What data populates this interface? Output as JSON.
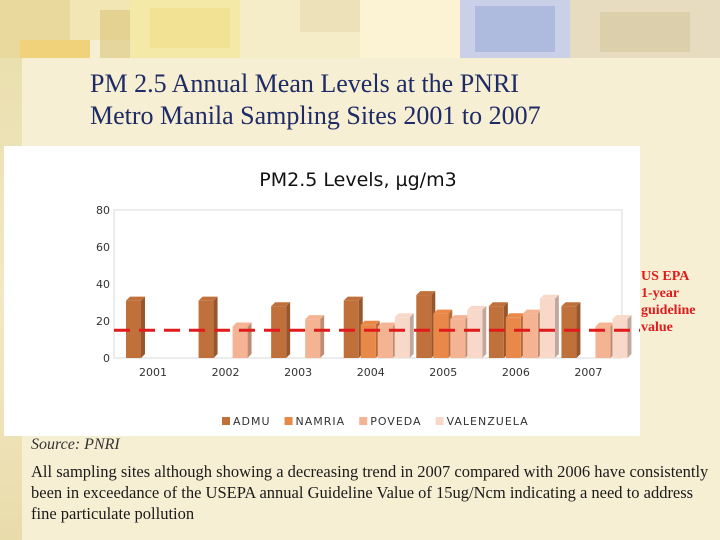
{
  "slide": {
    "title_line1": "PM 2.5 Annual Mean Levels at the PNRI",
    "title_line2": "Metro Manila Sampling Sites 2001 to 2007",
    "source": "Source: PNRI",
    "note": "All sampling sites although showing a decreasing trend in 2007 compared with 2006 have consistently been in exceedance of the USEPA annual Guideline Value of 15ug/Ncm indicating a need to address fine particulate pollution"
  },
  "guideline_label": {
    "line1": "US EPA",
    "line2": "1-year",
    "line3": "guideline",
    "line4": "value"
  },
  "colors": {
    "background": "#f7efd3",
    "title": "#1f2b66",
    "guideline": "#e11b1b",
    "admu": "#c0703a",
    "namria": "#e8894a",
    "poveda": "#f4b494",
    "valenzuela": "#f8d8c8"
  },
  "chart_data": {
    "type": "bar",
    "title": "PM2.5 Levels, µg/m3",
    "categories": [
      "2001",
      "2002",
      "2003",
      "2004",
      "2005",
      "2006",
      "2007"
    ],
    "series": [
      {
        "name": "ADMU",
        "color": "#c0703a",
        "values": [
          31,
          31,
          28,
          31,
          34,
          28,
          28
        ]
      },
      {
        "name": "NAMRIA",
        "color": "#e8894a",
        "values": [
          null,
          null,
          null,
          18,
          24,
          22,
          null
        ]
      },
      {
        "name": "POVEDA",
        "color": "#f4b494",
        "values": [
          null,
          17,
          21,
          17,
          21,
          24,
          17
        ]
      },
      {
        "name": "VALENZUELA",
        "color": "#f8d8c8",
        "values": [
          null,
          null,
          null,
          22,
          26,
          32,
          21
        ]
      }
    ],
    "ylim": [
      0,
      80
    ],
    "yticks": [
      0,
      20,
      40,
      60,
      80
    ],
    "grid": false,
    "legend_position": "bottom",
    "reference_line": {
      "value": 15,
      "style": "dashed",
      "color": "#e11b1b"
    }
  }
}
